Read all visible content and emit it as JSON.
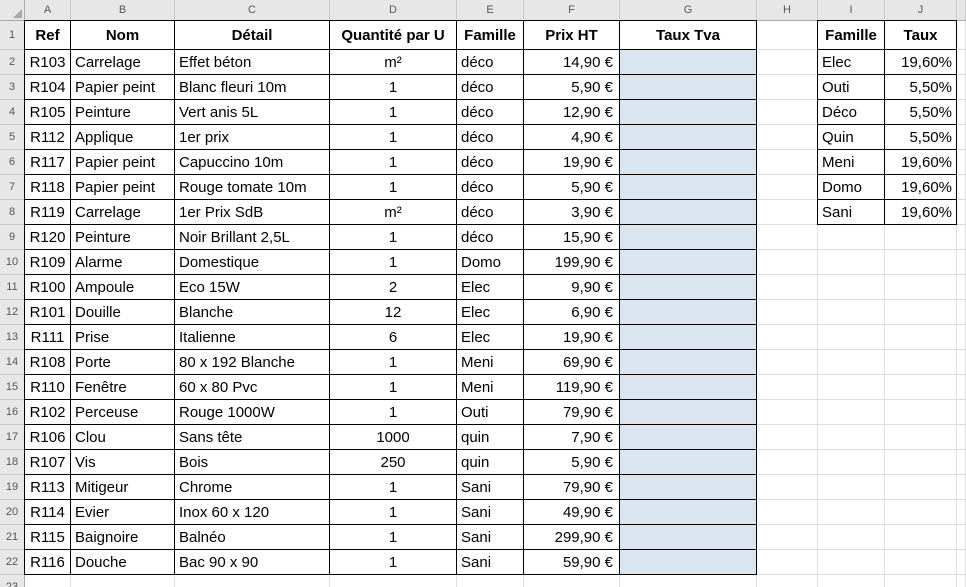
{
  "sheet": {
    "column_letters": [
      "A",
      "B",
      "C",
      "D",
      "E",
      "F",
      "G",
      "H",
      "I",
      "J",
      ""
    ],
    "row_numbers": [
      1,
      2,
      3,
      4,
      5,
      6,
      7,
      8,
      9,
      10,
      11,
      12,
      13,
      14,
      15,
      16,
      17,
      18,
      19,
      20,
      21,
      22,
      23
    ]
  },
  "main_table": {
    "headers": [
      "Ref",
      "Nom",
      "Détail",
      "Quantité par U",
      "Famille",
      "Prix HT",
      "Taux Tva"
    ],
    "rows": [
      {
        "ref": "R103",
        "nom": "Carrelage",
        "detail": "Effet béton",
        "qte": "m²",
        "famille": "déco",
        "prix": "14,90 €",
        "tva": ""
      },
      {
        "ref": "R104",
        "nom": "Papier peint",
        "detail": "Blanc fleuri 10m",
        "qte": "1",
        "famille": "déco",
        "prix": "5,90 €",
        "tva": ""
      },
      {
        "ref": "R105",
        "nom": "Peinture",
        "detail": "Vert anis 5L",
        "qte": "1",
        "famille": "déco",
        "prix": "12,90 €",
        "tva": ""
      },
      {
        "ref": "R112",
        "nom": "Applique",
        "detail": "1er prix",
        "qte": "1",
        "famille": "déco",
        "prix": "4,90 €",
        "tva": ""
      },
      {
        "ref": "R117",
        "nom": "Papier peint",
        "detail": "Capuccino 10m",
        "qte": "1",
        "famille": "déco",
        "prix": "19,90 €",
        "tva": ""
      },
      {
        "ref": "R118",
        "nom": "Papier peint",
        "detail": "Rouge tomate 10m",
        "qte": "1",
        "famille": "déco",
        "prix": "5,90 €",
        "tva": ""
      },
      {
        "ref": "R119",
        "nom": "Carrelage",
        "detail": "1er Prix SdB",
        "qte": "m²",
        "famille": "déco",
        "prix": "3,90 €",
        "tva": ""
      },
      {
        "ref": "R120",
        "nom": "Peinture",
        "detail": "Noir Brillant 2,5L",
        "qte": "1",
        "famille": "déco",
        "prix": "15,90 €",
        "tva": ""
      },
      {
        "ref": "R109",
        "nom": "Alarme",
        "detail": "Domestique",
        "qte": "1",
        "famille": "Domo",
        "prix": "199,90 €",
        "tva": ""
      },
      {
        "ref": "R100",
        "nom": "Ampoule",
        "detail": "Eco 15W",
        "qte": "2",
        "famille": "Elec",
        "prix": "9,90 €",
        "tva": ""
      },
      {
        "ref": "R101",
        "nom": "Douille",
        "detail": "Blanche",
        "qte": "12",
        "famille": "Elec",
        "prix": "6,90 €",
        "tva": ""
      },
      {
        "ref": "R111",
        "nom": "Prise",
        "detail": "Italienne",
        "qte": "6",
        "famille": "Elec",
        "prix": "19,90 €",
        "tva": ""
      },
      {
        "ref": "R108",
        "nom": "Porte",
        "detail": "80 x 192 Blanche",
        "qte": "1",
        "famille": "Meni",
        "prix": "69,90 €",
        "tva": ""
      },
      {
        "ref": "R110",
        "nom": "Fenêtre",
        "detail": "60 x 80 Pvc",
        "qte": "1",
        "famille": "Meni",
        "prix": "119,90 €",
        "tva": ""
      },
      {
        "ref": "R102",
        "nom": "Perceuse",
        "detail": "Rouge 1000W",
        "qte": "1",
        "famille": "Outi",
        "prix": "79,90 €",
        "tva": ""
      },
      {
        "ref": "R106",
        "nom": "Clou",
        "detail": "Sans tête",
        "qte": "1000",
        "famille": "quin",
        "prix": "7,90 €",
        "tva": ""
      },
      {
        "ref": "R107",
        "nom": "Vis",
        "detail": "Bois",
        "qte": "250",
        "famille": "quin",
        "prix": "5,90 €",
        "tva": ""
      },
      {
        "ref": "R113",
        "nom": "Mitigeur",
        "detail": "Chrome",
        "qte": "1",
        "famille": "Sani",
        "prix": "79,90 €",
        "tva": ""
      },
      {
        "ref": "R114",
        "nom": "Evier",
        "detail": "Inox 60 x 120",
        "qte": "1",
        "famille": "Sani",
        "prix": "49,90 €",
        "tva": ""
      },
      {
        "ref": "R115",
        "nom": "Baignoire",
        "detail": "Balnéo",
        "qte": "1",
        "famille": "Sani",
        "prix": "299,90 €",
        "tva": ""
      },
      {
        "ref": "R116",
        "nom": "Douche",
        "detail": "Bac 90 x 90",
        "qte": "1",
        "famille": "Sani",
        "prix": "59,90 €",
        "tva": ""
      }
    ]
  },
  "lookup_table": {
    "headers": [
      "Famille",
      "Taux"
    ],
    "rows": [
      {
        "famille": "Elec",
        "taux": "19,60%"
      },
      {
        "famille": "Outi",
        "taux": "5,50%"
      },
      {
        "famille": "Déco",
        "taux": "5,50%"
      },
      {
        "famille": "Quin",
        "taux": "5,50%"
      },
      {
        "famille": "Meni",
        "taux": "19,60%"
      },
      {
        "famille": "Domo",
        "taux": "19,60%"
      },
      {
        "famille": "Sani",
        "taux": "19,60%"
      }
    ]
  },
  "colors": {
    "tva_fill": "#dce6f0",
    "header_strip_fill": "#e7e7e7",
    "gridline": "#dedede",
    "table_border": "#000000"
  }
}
